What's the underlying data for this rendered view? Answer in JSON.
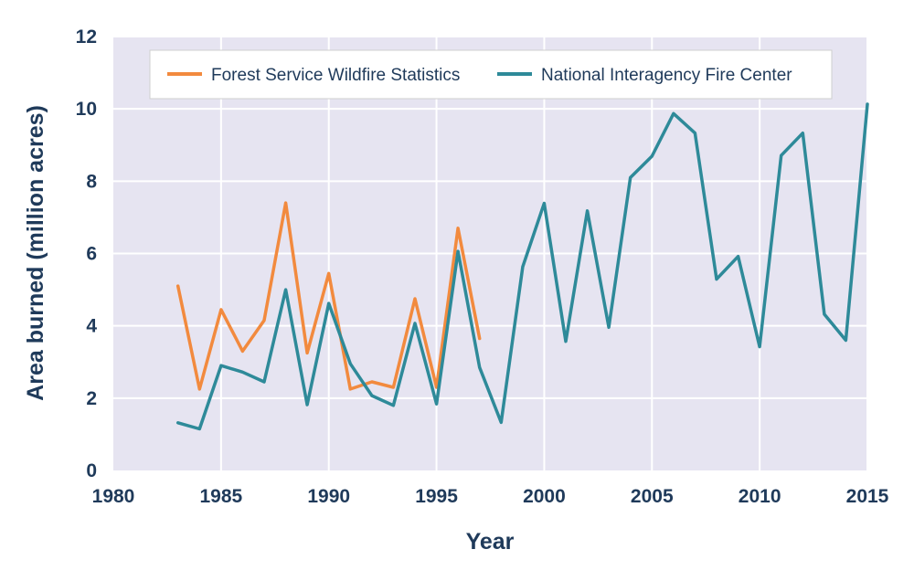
{
  "chart_data": {
    "type": "line",
    "title": "",
    "xlabel": "Year",
    "ylabel": "Area burned (million acres)",
    "xlim": [
      1980,
      2015
    ],
    "ylim": [
      0,
      12
    ],
    "x_ticks": [
      1980,
      1985,
      1990,
      1995,
      2000,
      2005,
      2010,
      2015
    ],
    "y_ticks": [
      0,
      2,
      4,
      6,
      8,
      10,
      12
    ],
    "grid": true,
    "legend_position": "top",
    "background_color": "#e6e4f1",
    "grid_color": "#ffffff",
    "series": [
      {
        "name": "Forest Service Wildfire Statistics",
        "color": "#f28a3e",
        "x": [
          1983,
          1984,
          1985,
          1986,
          1987,
          1988,
          1989,
          1990,
          1991,
          1992,
          1993,
          1994,
          1995,
          1996,
          1997
        ],
        "y": [
          5.1,
          2.25,
          4.45,
          3.3,
          4.15,
          7.4,
          3.25,
          5.45,
          2.25,
          2.45,
          2.3,
          4.75,
          2.3,
          6.7,
          3.65
        ]
      },
      {
        "name": "National Interagency Fire Center",
        "color": "#2e8a99",
        "x": [
          1983,
          1984,
          1985,
          1986,
          1987,
          1988,
          1989,
          1990,
          1991,
          1992,
          1993,
          1994,
          1995,
          1996,
          1997,
          1998,
          1999,
          2000,
          2001,
          2002,
          2003,
          2004,
          2005,
          2006,
          2007,
          2008,
          2009,
          2010,
          2011,
          2012,
          2013,
          2014,
          2015
        ],
        "y": [
          1.32,
          1.15,
          2.9,
          2.72,
          2.45,
          5.0,
          1.82,
          4.62,
          2.95,
          2.07,
          1.8,
          4.07,
          1.84,
          6.06,
          2.85,
          1.33,
          5.63,
          7.39,
          3.57,
          7.18,
          3.96,
          8.1,
          8.69,
          9.87,
          9.33,
          5.29,
          5.92,
          3.42,
          8.71,
          9.33,
          4.32,
          3.6,
          10.13
        ]
      }
    ]
  }
}
